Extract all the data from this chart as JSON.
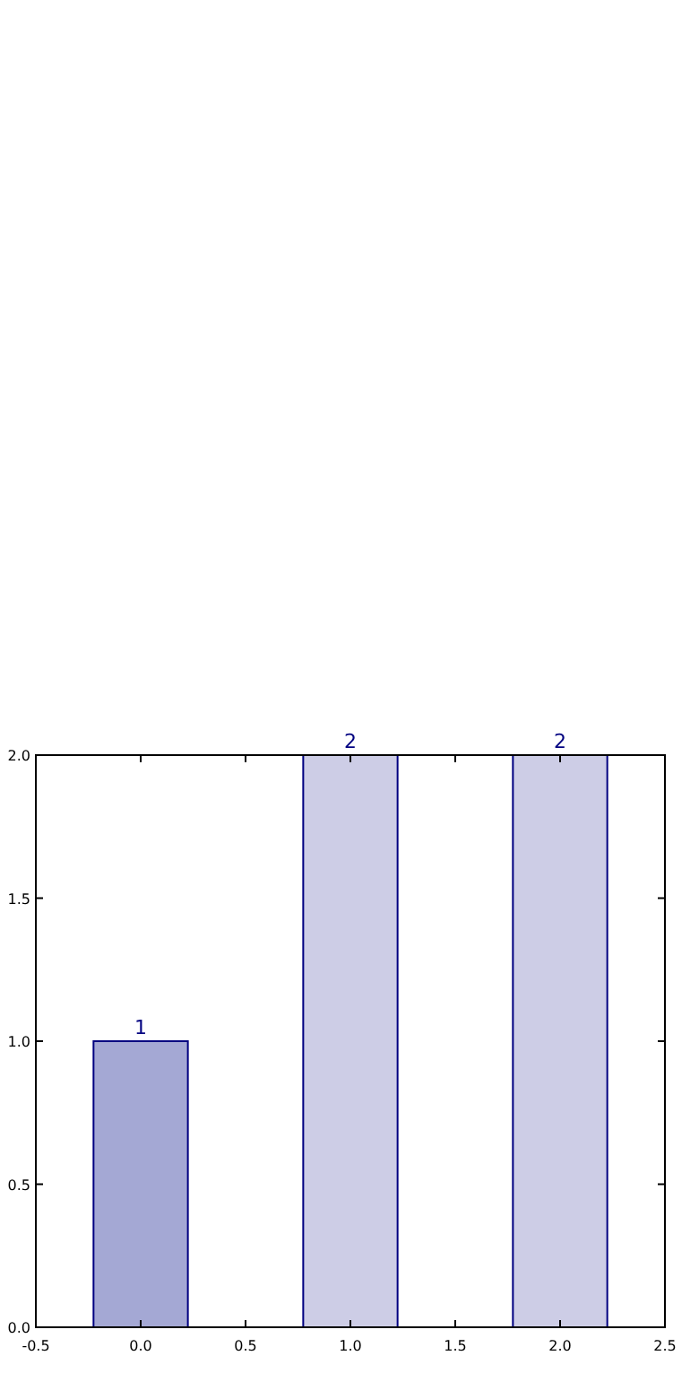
{
  "chart_data": {
    "type": "bar",
    "x": [
      0,
      1,
      2
    ],
    "values": [
      1,
      2,
      2
    ],
    "colors": [
      "#a4a8d4",
      "#cdcde6",
      "#cdcde6"
    ],
    "xlim": [
      -0.5,
      2.5
    ],
    "xticks": [
      {
        "value": -0.5,
        "label": "-0.5"
      },
      {
        "value": 0,
        "label": "0.0"
      },
      {
        "value": 0.5,
        "label": "0.5"
      },
      {
        "value": 1,
        "label": "1.0"
      },
      {
        "value": 1.5,
        "label": "1.5"
      },
      {
        "value": 2,
        "label": "2.0"
      },
      {
        "value": 2.5,
        "label": "2.5"
      }
    ],
    "ylim": [
      0,
      2
    ],
    "yticks": [
      {
        "value": 0,
        "label": "0.0"
      },
      {
        "value": 0.5,
        "label": "0.5"
      },
      {
        "value": 1,
        "label": "1.0"
      },
      {
        "value": 1.5,
        "label": "1.5"
      },
      {
        "value": 2,
        "label": "2.0"
      }
    ],
    "data_labels": true
  }
}
